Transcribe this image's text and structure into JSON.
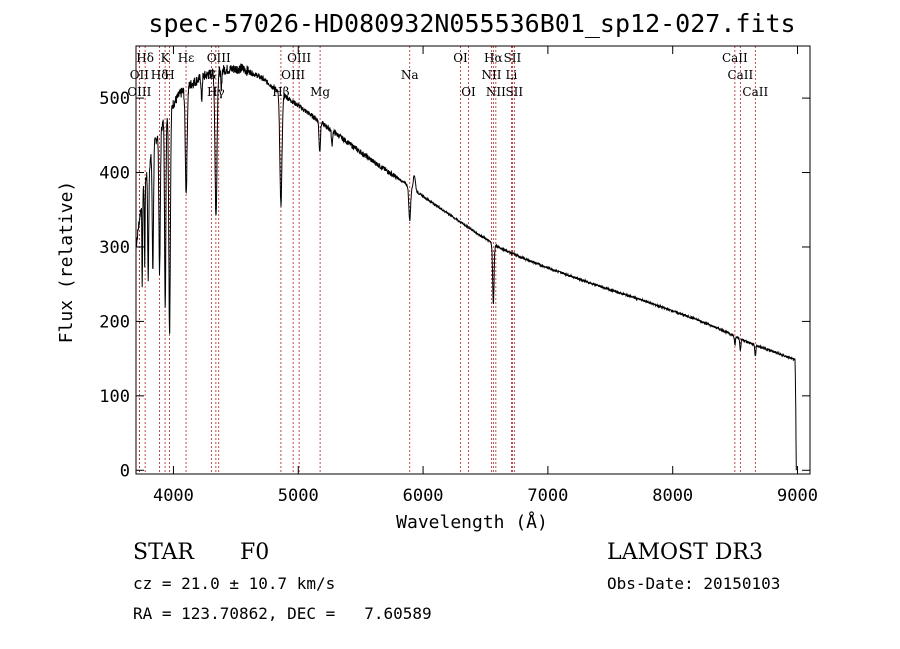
{
  "chart_data": {
    "type": "line",
    "title": "spec-57026-HD080932N055536B01_sp12-027.fits",
    "xlabel": "Wavelength (Å)",
    "ylabel": "Flux (relative)",
    "xlim": [
      3700,
      9100
    ],
    "ylim": [
      -5,
      570
    ],
    "xticks": [
      4000,
      5000,
      6000,
      7000,
      8000,
      9000
    ],
    "yticks": [
      0,
      100,
      200,
      300,
      400,
      500
    ],
    "continuum": [
      [
        3700,
        300
      ],
      [
        3760,
        380
      ],
      [
        3850,
        440
      ],
      [
        3950,
        480
      ],
      [
        4050,
        505
      ],
      [
        4150,
        520
      ],
      [
        4250,
        530
      ],
      [
        4400,
        538
      ],
      [
        4550,
        540
      ],
      [
        4700,
        528
      ],
      [
        4850,
        508
      ],
      [
        5000,
        490
      ],
      [
        5200,
        465
      ],
      [
        5400,
        440
      ],
      [
        5600,
        415
      ],
      [
        5800,
        392
      ],
      [
        6000,
        368
      ],
      [
        6200,
        345
      ],
      [
        6400,
        322
      ],
      [
        6600,
        300
      ],
      [
        6800,
        285
      ],
      [
        7000,
        272
      ],
      [
        7200,
        260
      ],
      [
        7400,
        248
      ],
      [
        7600,
        237
      ],
      [
        7800,
        226
      ],
      [
        8000,
        214
      ],
      [
        8200,
        202
      ],
      [
        8400,
        188
      ],
      [
        8600,
        172
      ],
      [
        8800,
        160
      ],
      [
        8980,
        148
      ],
      [
        8985,
        100
      ],
      [
        8990,
        0
      ]
    ],
    "absorption": [
      {
        "center": 3750,
        "depth": 120,
        "width": 4
      },
      {
        "center": 3770,
        "depth": 110,
        "width": 4
      },
      {
        "center": 3798,
        "depth": 150,
        "width": 6
      },
      {
        "center": 3835,
        "depth": 160,
        "width": 7
      },
      {
        "center": 3889,
        "depth": 190,
        "width": 8
      },
      {
        "center": 3934,
        "depth": 260,
        "width": 7
      },
      {
        "center": 3969,
        "depth": 300,
        "width": 9
      },
      {
        "center": 4102,
        "depth": 140,
        "width": 10
      },
      {
        "center": 4226,
        "depth": 35,
        "width": 5
      },
      {
        "center": 4341,
        "depth": 195,
        "width": 11
      },
      {
        "center": 4383,
        "depth": 30,
        "width": 5
      },
      {
        "center": 4861,
        "depth": 150,
        "width": 12
      },
      {
        "center": 5172,
        "depth": 40,
        "width": 8
      },
      {
        "center": 5270,
        "depth": 20,
        "width": 6
      },
      {
        "center": 5893,
        "depth": 45,
        "width": 10
      },
      {
        "center": 6563,
        "depth": 80,
        "width": 8
      },
      {
        "center": 8498,
        "depth": 12,
        "width": 6
      },
      {
        "center": 8542,
        "depth": 15,
        "width": 6
      },
      {
        "center": 8662,
        "depth": 15,
        "width": 6
      }
    ],
    "emission": [
      {
        "center": 5930,
        "height": 20,
        "width": 12
      }
    ],
    "line_markers": [
      {
        "label": "Hδ",
        "wavelength": 3773,
        "tier": 1
      },
      {
        "label": "K",
        "wavelength": 3933,
        "tier": 1
      },
      {
        "label": "Hε",
        "wavelength": 4101,
        "tier": 1
      },
      {
        "label": "OIII",
        "wavelength": 4363,
        "tier": 1
      },
      {
        "label": "OIII",
        "wavelength": 5007,
        "tier": 1
      },
      {
        "label": "OI",
        "wavelength": 6300,
        "tier": 1
      },
      {
        "label": "Hα",
        "wavelength": 6563,
        "tier": 1
      },
      {
        "label": "SII",
        "wavelength": 6716,
        "tier": 1
      },
      {
        "label": "CaII",
        "wavelength": 8498,
        "tier": 1
      },
      {
        "label": "OII",
        "wavelength": 3727,
        "tier": 2
      },
      {
        "label": "Hδ",
        "wavelength": 3889,
        "tier": 2
      },
      {
        "label": "H",
        "wavelength": 3968,
        "tier": 2
      },
      {
        "label": "G",
        "wavelength": 4304,
        "tier": 2
      },
      {
        "label": "OIII",
        "wavelength": 4959,
        "tier": 2
      },
      {
        "label": "Na",
        "wavelength": 5893,
        "tier": 2
      },
      {
        "label": "NII",
        "wavelength": 6548,
        "tier": 2
      },
      {
        "label": "Li",
        "wavelength": 6708,
        "tier": 2
      },
      {
        "label": "CaII",
        "wavelength": 8542,
        "tier": 2
      },
      {
        "label": "OIII",
        "wavelength": 3727,
        "tier": 3
      },
      {
        "label": "Hγ",
        "wavelength": 4340,
        "tier": 3
      },
      {
        "label": "Hβ",
        "wavelength": 4861,
        "tier": 3
      },
      {
        "label": "Mg",
        "wavelength": 5175,
        "tier": 3
      },
      {
        "label": "OI",
        "wavelength": 6364,
        "tier": 3
      },
      {
        "label": "NII",
        "wavelength": 6583,
        "tier": 3
      },
      {
        "label": "SII",
        "wavelength": 6731,
        "tier": 3
      },
      {
        "label": "CaII",
        "wavelength": 8662,
        "tier": 3
      }
    ]
  },
  "info": {
    "object_class": "STAR",
    "subclass": "F0",
    "survey": "LAMOST DR3",
    "redshift": "cz = 21.0 ± 10.7 km/s",
    "obs_date": "Obs-Date: 20150103",
    "coords": "RA = 123.70862, DEC =   7.60589"
  },
  "colors": {
    "spectrum": "#000000",
    "marker": "#b22222",
    "axis": "#000000",
    "background": "#ffffff"
  }
}
